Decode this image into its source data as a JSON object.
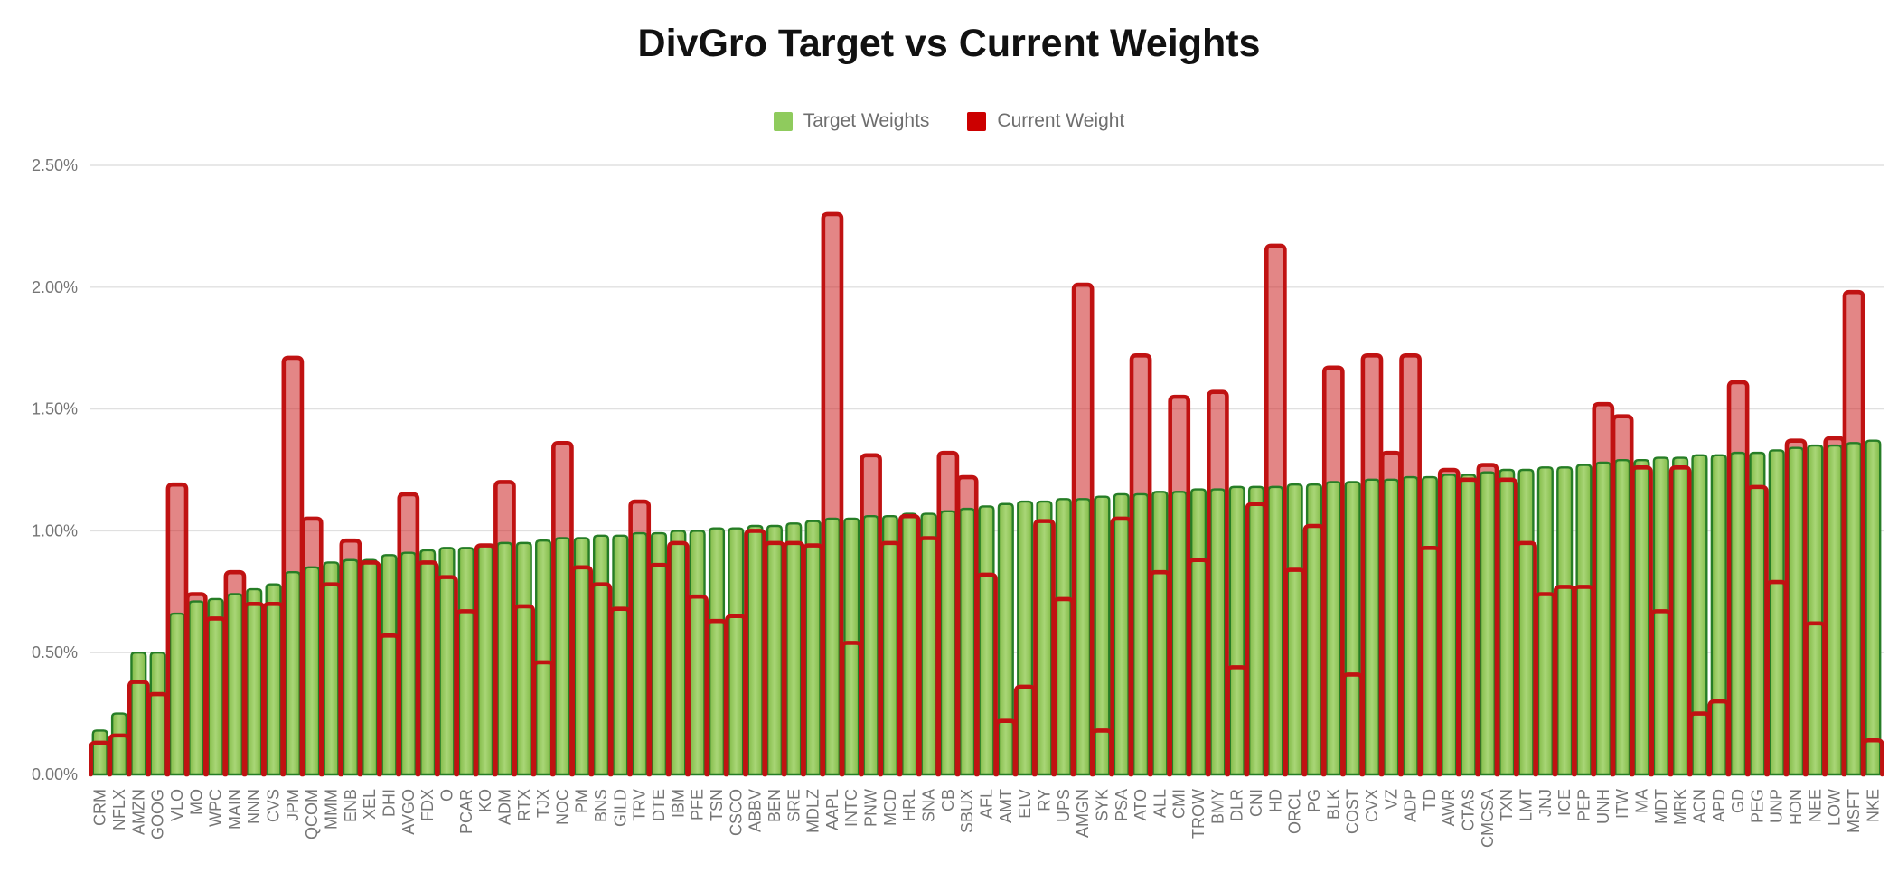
{
  "title": "DivGro Target vs Current Weights",
  "legend": {
    "target": {
      "label": "Target Weights",
      "color": "#8fcb5d"
    },
    "current": {
      "label": "Current Weight",
      "color": "#cc0000"
    }
  },
  "y_axis": {
    "ticks": [
      "0.00%",
      "0.50%",
      "1.00%",
      "1.50%",
      "2.00%",
      "2.50%"
    ],
    "min": 0,
    "max": 2.5
  },
  "colors": {
    "target_fill_light": "#a9d677",
    "target_fill_dark": "#82bb47",
    "target_stroke": "#267d26",
    "current_stroke": "#c01212",
    "current_fill": "#cc2222",
    "gridline": "#e0e0e0",
    "axis_text": "#757575",
    "title_text": "#111111"
  },
  "chart_data": {
    "type": "bar",
    "title": "DivGro Target vs Current Weights",
    "ylabel": "",
    "xlabel": "",
    "ylim": [
      0,
      2.5
    ],
    "ytick_format": "percent",
    "grid": true,
    "legend_position": "top",
    "categories": [
      "CRM",
      "NFLX",
      "AMZN",
      "GOOG",
      "VLO",
      "MO",
      "WPC",
      "MAIN",
      "NNN",
      "CVS",
      "JPM",
      "QCOM",
      "MMM",
      "ENB",
      "XEL",
      "DHI",
      "AVGO",
      "FDX",
      "O",
      "PCAR",
      "KO",
      "ADM",
      "RTX",
      "TJX",
      "NOC",
      "PM",
      "BNS",
      "GILD",
      "TRV",
      "DTE",
      "IBM",
      "PFE",
      "TSN",
      "CSCO",
      "ABBV",
      "BEN",
      "SRE",
      "MDLZ",
      "AAPL",
      "INTC",
      "PNW",
      "MCD",
      "HRL",
      "SNA",
      "CB",
      "SBUX",
      "AFL",
      "AMT",
      "ELV",
      "RY",
      "UPS",
      "AMGN",
      "SYK",
      "PSA",
      "ATO",
      "ALL",
      "CMI",
      "TROW",
      "BMY",
      "DLR",
      "CNI",
      "HD",
      "ORCL",
      "PG",
      "BLK",
      "COST",
      "CVX",
      "VZ",
      "ADP",
      "TD",
      "AWR",
      "CTAS",
      "CMCSA",
      "TXN",
      "LMT",
      "JNJ",
      "ICE",
      "PEP",
      "UNH",
      "ITW",
      "MA",
      "MDT",
      "MRK",
      "ACN",
      "APD",
      "GD",
      "PEG",
      "UNP",
      "HON",
      "NEE",
      "LOW",
      "MSFT",
      "NKE"
    ],
    "series": [
      {
        "name": "Target Weights",
        "unit": "%",
        "values": [
          0.18,
          0.25,
          0.5,
          0.5,
          0.66,
          0.71,
          0.72,
          0.74,
          0.76,
          0.78,
          0.83,
          0.85,
          0.87,
          0.88,
          0.88,
          0.9,
          0.91,
          0.92,
          0.93,
          0.93,
          0.94,
          0.95,
          0.95,
          0.96,
          0.97,
          0.97,
          0.98,
          0.98,
          0.99,
          0.99,
          1.0,
          1.0,
          1.01,
          1.01,
          1.02,
          1.02,
          1.03,
          1.04,
          1.05,
          1.05,
          1.06,
          1.06,
          1.07,
          1.07,
          1.08,
          1.09,
          1.1,
          1.11,
          1.12,
          1.12,
          1.13,
          1.13,
          1.14,
          1.15,
          1.15,
          1.16,
          1.16,
          1.17,
          1.17,
          1.18,
          1.18,
          1.18,
          1.19,
          1.19,
          1.2,
          1.2,
          1.21,
          1.21,
          1.22,
          1.22,
          1.23,
          1.23,
          1.24,
          1.25,
          1.25,
          1.26,
          1.26,
          1.27,
          1.28,
          1.29,
          1.29,
          1.3,
          1.3,
          1.31,
          1.31,
          1.32,
          1.32,
          1.33,
          1.34,
          1.35,
          1.35,
          1.36,
          1.37
        ]
      },
      {
        "name": "Current Weight",
        "unit": "%",
        "values": [
          0.13,
          0.16,
          0.38,
          0.33,
          1.19,
          0.74,
          0.64,
          0.83,
          0.7,
          0.7,
          1.71,
          1.05,
          0.78,
          0.96,
          0.87,
          0.57,
          1.15,
          0.87,
          0.81,
          0.67,
          0.94,
          1.2,
          0.69,
          0.46,
          1.36,
          0.85,
          0.78,
          0.68,
          1.12,
          0.86,
          0.95,
          0.73,
          0.63,
          0.65,
          1.0,
          0.95,
          0.95,
          0.94,
          2.3,
          0.54,
          1.31,
          0.95,
          1.06,
          0.97,
          1.32,
          1.22,
          0.82,
          0.22,
          0.36,
          1.04,
          0.72,
          2.01,
          0.18,
          1.05,
          1.72,
          0.83,
          1.55,
          0.88,
          1.57,
          0.44,
          1.11,
          2.17,
          0.84,
          1.02,
          1.67,
          0.41,
          1.72,
          1.32,
          1.72,
          0.93,
          1.25,
          1.21,
          1.27,
          1.21,
          0.95,
          0.74,
          0.77,
          0.77,
          1.52,
          1.47,
          1.26,
          0.67,
          1.26,
          0.25,
          0.3,
          1.61,
          1.18,
          0.79,
          1.37,
          0.62,
          1.38,
          1.98,
          0.14
        ]
      }
    ]
  }
}
